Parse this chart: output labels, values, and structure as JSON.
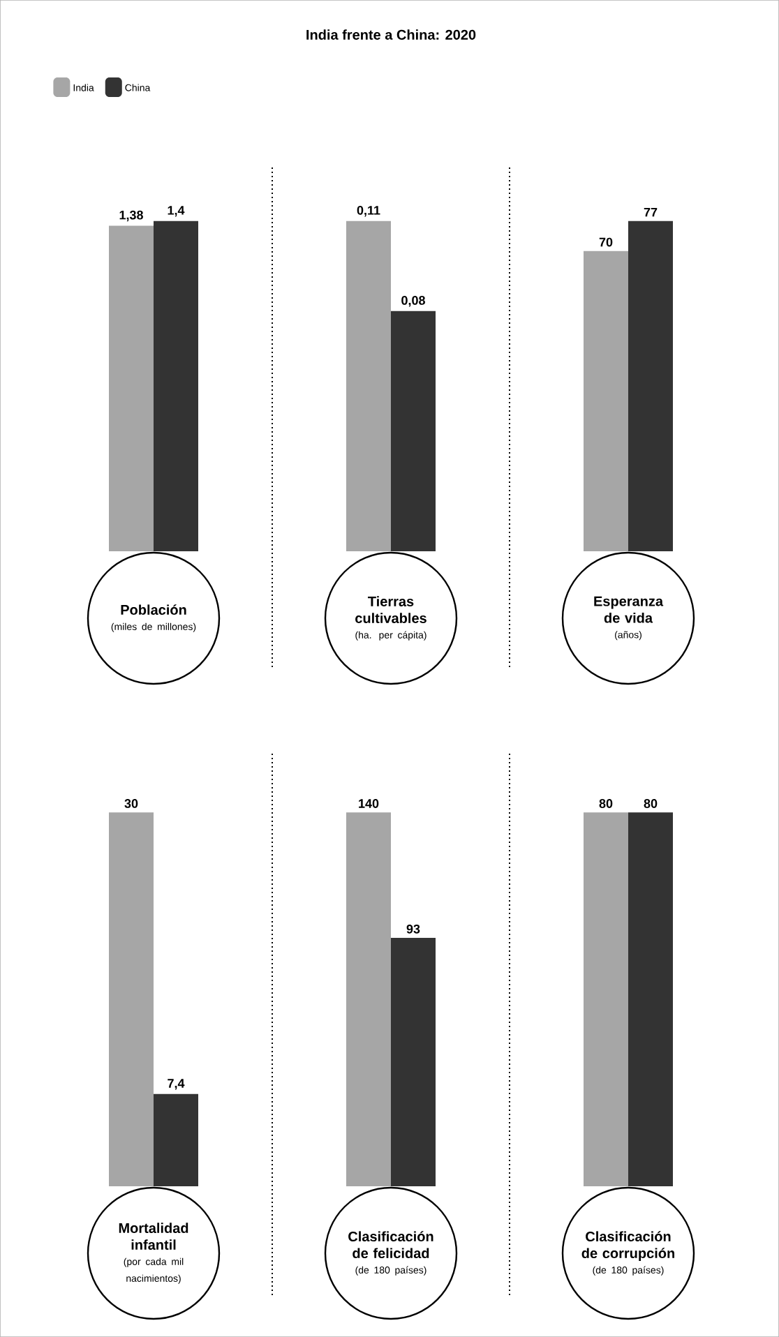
{
  "chart_data": [
    {
      "type": "bar",
      "legend": "top left",
      "xlabel": "Población",
      "subtitle": "(miles de millones)",
      "series": [
        {
          "name": "India",
          "color": "#a6a6a6",
          "values": [
            1.38
          ],
          "value_labels": [
            "1,38"
          ]
        },
        {
          "name": "China",
          "color": "#333333",
          "values": [
            1.4
          ],
          "value_labels": [
            "1,4"
          ]
        }
      ]
    },
    {
      "type": "bar",
      "title": "India frente a China: 2020",
      "xlabel": "Tierras cultivables",
      "subtitle": "(ha. per cápita)",
      "series": [
        {
          "color": "#a6a6a6",
          "values": [
            0.11
          ],
          "value_labels": [
            "0,11"
          ]
        },
        {
          "color": "#333333",
          "values": [
            0.08
          ],
          "value_labels": [
            "0,08"
          ]
        }
      ]
    },
    {
      "type": "bar",
      "xlabel": "Esperanza de vida",
      "subtitle": "(años)",
      "series": [
        {
          "color": "#a6a6a6",
          "values": [
            70
          ],
          "value_labels": [
            "70"
          ]
        },
        {
          "color": "#333333",
          "values": [
            77
          ],
          "value_labels": [
            "77"
          ]
        }
      ]
    },
    {
      "type": "bar",
      "xlabel": "Mortalidad infantil",
      "subtitle": "(por cada mil nacimientos)",
      "series": [
        {
          "color": "#a6a6a6",
          "values": [
            30
          ],
          "value_labels": [
            "30"
          ]
        },
        {
          "color": "#333333",
          "values": [
            7.4
          ],
          "value_labels": [
            "7,4"
          ]
        }
      ]
    },
    {
      "type": "bar",
      "xlabel": "Clasificación de felicidad",
      "subtitle": "(de 180 países)",
      "series": [
        {
          "color": "#a6a6a6",
          "values": [
            140
          ],
          "value_labels": [
            "140"
          ]
        },
        {
          "color": "#333333",
          "values": [
            93
          ],
          "value_labels": [
            "93"
          ]
        }
      ]
    },
    {
      "type": "bar",
      "xlabel": "Clasificación de corrupción",
      "subtitle": "(de 180 países)",
      "series": [
        {
          "color": "#a6a6a6",
          "values": [
            80
          ],
          "value_labels": [
            "80"
          ]
        },
        {
          "color": "#333333",
          "values": [
            80
          ],
          "value_labels": [
            "80"
          ]
        }
      ]
    }
  ]
}
